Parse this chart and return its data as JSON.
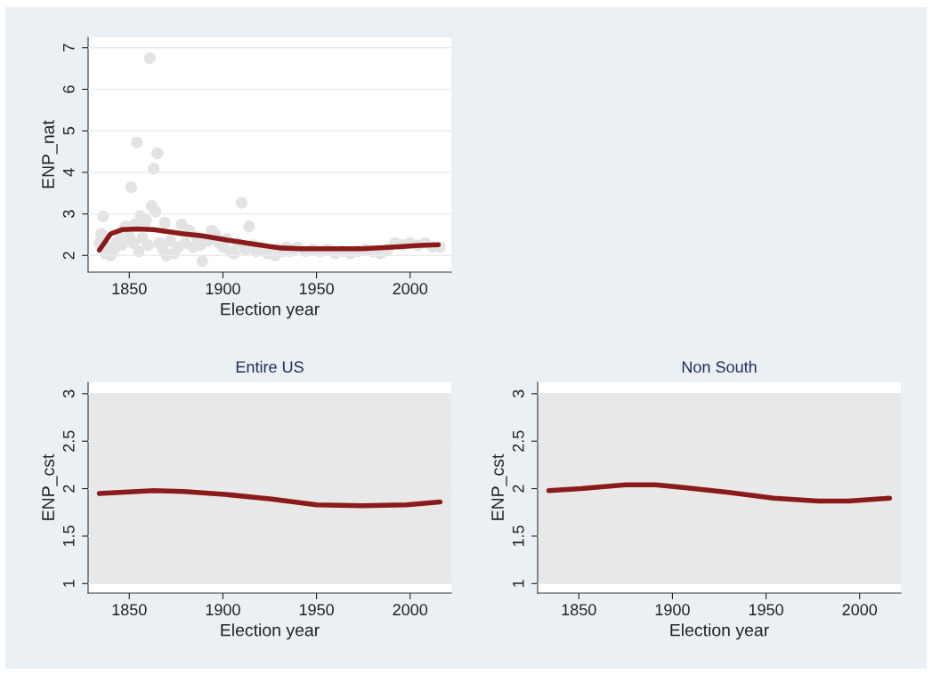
{
  "chart_data": [
    {
      "type": "scatter",
      "xlabel": "Election year",
      "ylabel": "ENP_nat",
      "xlim": [
        1828,
        2022
      ],
      "ylim": [
        1.6,
        7.25
      ],
      "xticks": [
        1850,
        1900,
        1950,
        2000
      ],
      "yticks": [
        2,
        3,
        4,
        5,
        6,
        7
      ],
      "grid": "y",
      "series": [
        {
          "color": "#e3e3e3",
          "marker": "circle",
          "x": [
            1861,
            1854,
            1865,
            1863,
            1851,
            1910,
            1836,
            1862,
            1864,
            1856,
            1914,
            1869,
            1889,
            1834,
            1835,
            1837,
            1838,
            1840,
            1842,
            1843,
            1845,
            1846,
            1847,
            1848,
            1850,
            1852,
            1853,
            1855,
            1857,
            1858,
            1859,
            1860,
            1866,
            1868,
            1870,
            1872,
            1874,
            1876,
            1878,
            1880,
            1882,
            1884,
            1886,
            1888,
            1892,
            1894,
            1896,
            1898,
            1900,
            1902,
            1904,
            1906,
            1908,
            1912,
            1916,
            1918,
            1920,
            1924,
            1928,
            1930,
            1932,
            1934,
            1936,
            1938,
            1940,
            1944,
            1948,
            1952,
            1956,
            1960,
            1964,
            1968,
            1972,
            1976,
            1980,
            1984,
            1988,
            1992,
            1996,
            2000,
            2004,
            2008,
            2012,
            2016
          ],
          "values": [
            6.75,
            4.72,
            4.46,
            4.09,
            3.64,
            3.27,
            2.94,
            3.19,
            3.06,
            2.95,
            2.7,
            2.79,
            1.86,
            2.3,
            2.52,
            2.05,
            2.2,
            2.0,
            2.15,
            2.3,
            2.4,
            2.25,
            2.6,
            2.7,
            2.45,
            2.3,
            2.75,
            2.1,
            2.42,
            2.75,
            2.85,
            2.25,
            2.3,
            2.15,
            2.0,
            2.35,
            2.05,
            2.2,
            2.75,
            2.3,
            2.6,
            2.2,
            2.45,
            2.25,
            2.35,
            2.6,
            2.5,
            2.3,
            2.2,
            2.4,
            2.1,
            2.05,
            2.3,
            2.15,
            2.25,
            2.1,
            2.2,
            2.05,
            2.0,
            2.15,
            2.1,
            2.2,
            2.1,
            2.15,
            2.2,
            2.1,
            2.15,
            2.1,
            2.15,
            2.05,
            2.1,
            2.05,
            2.1,
            2.15,
            2.1,
            2.05,
            2.15,
            2.3,
            2.25,
            2.3,
            2.25,
            2.3,
            2.2,
            2.2
          ]
        },
        {
          "type": "line",
          "color": "#8b1a1a",
          "x": [
            1834,
            1840,
            1846,
            1854,
            1863,
            1879,
            1889,
            1901,
            1917,
            1931,
            1942,
            1958,
            1974,
            1990,
            2005,
            2015
          ],
          "values": [
            2.13,
            2.52,
            2.62,
            2.64,
            2.62,
            2.52,
            2.47,
            2.38,
            2.27,
            2.18,
            2.16,
            2.16,
            2.16,
            2.2,
            2.24,
            2.26
          ]
        }
      ]
    },
    {
      "type": "line",
      "title": "Entire US",
      "xlabel": "Election year",
      "ylabel": "ENP_cst",
      "xlim": [
        1828,
        2022
      ],
      "ylim": [
        0.9,
        3.12
      ],
      "xticks": [
        1850,
        1900,
        1950,
        2000
      ],
      "yticks": [
        1,
        1.5,
        2,
        2.5,
        3
      ],
      "grid": "y",
      "bands": [
        {
          "axis": "y",
          "from": 1,
          "to": 3,
          "color": "#e8e8e8"
        }
      ],
      "series": [
        {
          "color": "#8b1a1a",
          "x": [
            1834,
            1863,
            1879,
            1901,
            1926,
            1950,
            1974,
            1998,
            2016
          ],
          "values": [
            1.95,
            1.98,
            1.97,
            1.94,
            1.89,
            1.83,
            1.82,
            1.83,
            1.86
          ]
        }
      ]
    },
    {
      "type": "line",
      "title": "Non South",
      "xlabel": "Election year",
      "ylabel": "ENP_cst",
      "xlim": [
        1828,
        2022
      ],
      "ylim": [
        0.9,
        3.12
      ],
      "xticks": [
        1850,
        1900,
        1950,
        2000
      ],
      "yticks": [
        1,
        1.5,
        2,
        2.5,
        3
      ],
      "grid": "y",
      "bands": [
        {
          "axis": "y",
          "from": 1,
          "to": 3,
          "color": "#e8e8e8"
        }
      ],
      "series": [
        {
          "color": "#8b1a1a",
          "x": [
            1834,
            1851,
            1875,
            1891,
            1907,
            1930,
            1954,
            1978,
            1994,
            2016
          ],
          "values": [
            1.98,
            2.0,
            2.04,
            2.04,
            2.01,
            1.96,
            1.9,
            1.87,
            1.87,
            1.9
          ]
        }
      ]
    }
  ]
}
